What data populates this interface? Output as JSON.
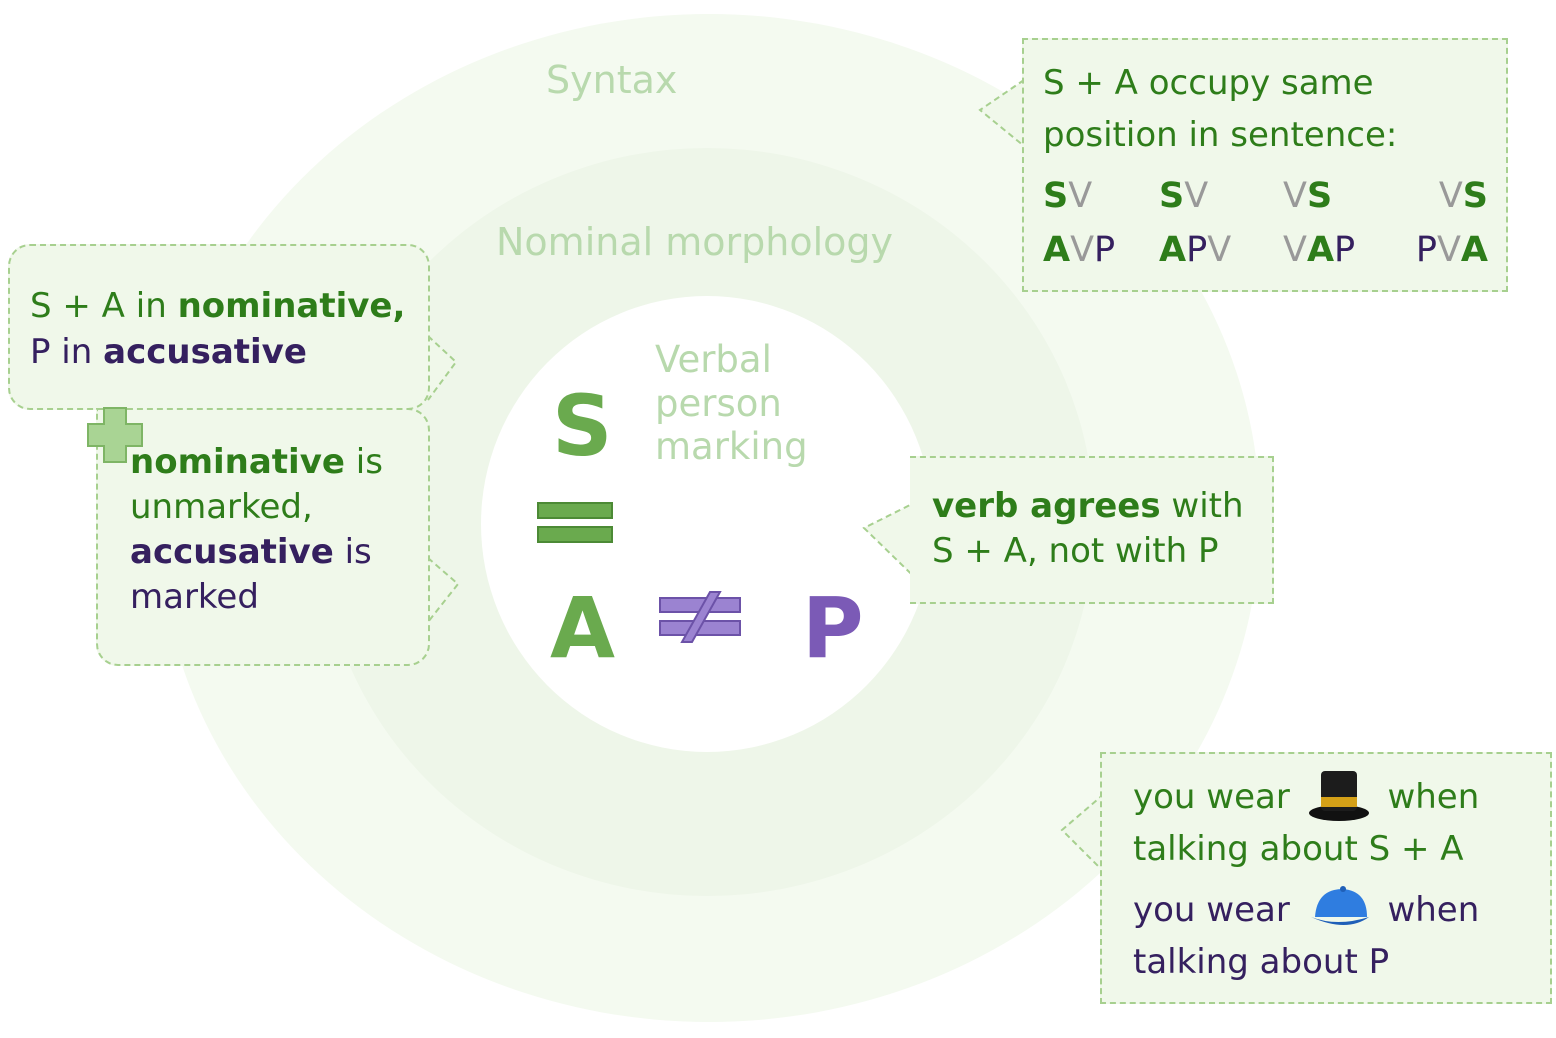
{
  "layers": {
    "syntax": "Syntax",
    "nominal": "Nominal morphology",
    "verbal": [
      "Verbal",
      "person",
      "marking"
    ]
  },
  "center": {
    "s": "S",
    "a": "A",
    "p": "P"
  },
  "syntax_box": {
    "lines": [
      "S + A occupy same",
      "position in sentence:"
    ],
    "orders": [
      [
        {
          "t": "S",
          "c": "gb"
        },
        {
          "t": "V",
          "c": "gray"
        }
      ],
      [
        {
          "t": "S",
          "c": "gb"
        },
        {
          "t": "V",
          "c": "gray"
        }
      ],
      [
        {
          "t": "V",
          "c": "gray"
        },
        {
          "t": "S",
          "c": "gb"
        }
      ],
      [
        {
          "t": "V",
          "c": "gray"
        },
        {
          "t": "S",
          "c": "gb"
        }
      ],
      [
        {
          "t": "A",
          "c": "gb"
        },
        {
          "t": "V",
          "c": "gray"
        },
        {
          "t": "P",
          "c": "p"
        }
      ],
      [
        {
          "t": "A",
          "c": "gb"
        },
        {
          "t": "P",
          "c": "p"
        },
        {
          "t": "V",
          "c": "gray"
        }
      ],
      [
        {
          "t": "V",
          "c": "gray"
        },
        {
          "t": "A",
          "c": "gb"
        },
        {
          "t": "P",
          "c": "p"
        }
      ],
      [
        {
          "t": "P",
          "c": "p"
        },
        {
          "t": "V",
          "c": "gray"
        },
        {
          "t": "A",
          "c": "gb"
        }
      ]
    ]
  },
  "case_box": {
    "l1a": "S + A in ",
    "l1b": "nominative,",
    "l2a": "P in ",
    "l2b": "accusative"
  },
  "marking_box": {
    "nom": "nominative",
    "is1": " is",
    "unmarked": "unmarked,",
    "acc": "accusative",
    "is2": " is",
    "marked": "marked"
  },
  "agree_box": {
    "bold": "verb agrees",
    "rest": " with",
    "line2": "S + A, not with P"
  },
  "hat_box": {
    "l1a": "you wear",
    "l1b": "when",
    "l2": "talking about S + A",
    "l3a": "you wear",
    "l3b": "when",
    "l4": "talking about P",
    "icons": [
      "top-hat-icon",
      "cap-icon"
    ]
  },
  "colors": {
    "green": "#2e7d1a",
    "purple": "#35205f",
    "light_green": "#6aaa4e",
    "light_purple": "#7b5ab6"
  }
}
